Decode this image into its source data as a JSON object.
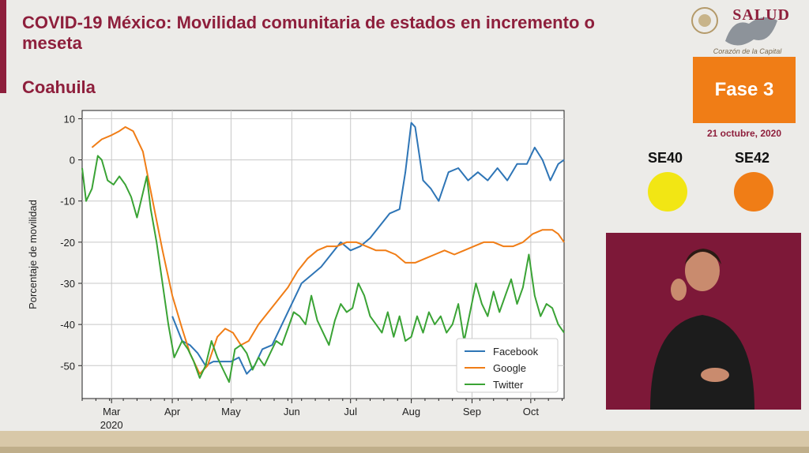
{
  "header": {
    "title": "COVID-19 México: Movilidad comunitaria de estados en incremento o meseta",
    "state": "Coahuila"
  },
  "logo": {
    "agency": "SALUD",
    "tagline": "Corazón de la Capital"
  },
  "phase": {
    "label": "Fase 3",
    "color": "#f07d16",
    "date": "21 octubre, 2020"
  },
  "weeks": [
    {
      "label": "SE40",
      "color": "#f2e614"
    },
    {
      "label": "SE42",
      "color": "#f07d16"
    }
  ],
  "chart_data": {
    "type": "line",
    "ylabel": "Porcentaje de movilidad",
    "xlabel": "",
    "ylim": [
      -58,
      12
    ],
    "yticks": [
      10,
      0,
      -10,
      -20,
      -30,
      -40,
      -50
    ],
    "xlim": [
      "2020-02-15",
      "2020-10-18"
    ],
    "xticks": [
      {
        "label": "Mar",
        "sublabel": "2020",
        "date": "2020-03-01"
      },
      {
        "label": "Apr",
        "date": "2020-04-01"
      },
      {
        "label": "May",
        "date": "2020-05-01"
      },
      {
        "label": "Jun",
        "date": "2020-06-01"
      },
      {
        "label": "Jul",
        "date": "2020-07-01"
      },
      {
        "label": "Aug",
        "date": "2020-08-01"
      },
      {
        "label": "Sep",
        "date": "2020-09-01"
      },
      {
        "label": "Oct",
        "date": "2020-10-01"
      }
    ],
    "grid": true,
    "legend": "bottom-right",
    "series": [
      {
        "name": "Facebook",
        "color": "#2e75b6",
        "points": [
          [
            "2020-04-01",
            -38
          ],
          [
            "2020-04-06",
            -44
          ],
          [
            "2020-04-10",
            -45
          ],
          [
            "2020-04-14",
            -47
          ],
          [
            "2020-04-18",
            -50
          ],
          [
            "2020-04-22",
            -49
          ],
          [
            "2020-04-26",
            -49
          ],
          [
            "2020-05-01",
            -49
          ],
          [
            "2020-05-05",
            -48
          ],
          [
            "2020-05-09",
            -52
          ],
          [
            "2020-05-13",
            -50
          ],
          [
            "2020-05-17",
            -46
          ],
          [
            "2020-05-22",
            -45
          ],
          [
            "2020-05-27",
            -40
          ],
          [
            "2020-06-01",
            -35
          ],
          [
            "2020-06-06",
            -30
          ],
          [
            "2020-06-11",
            -28
          ],
          [
            "2020-06-16",
            -26
          ],
          [
            "2020-06-21",
            -23
          ],
          [
            "2020-06-26",
            -20
          ],
          [
            "2020-07-01",
            -22
          ],
          [
            "2020-07-06",
            -21
          ],
          [
            "2020-07-11",
            -19
          ],
          [
            "2020-07-16",
            -16
          ],
          [
            "2020-07-21",
            -13
          ],
          [
            "2020-07-26",
            -12
          ],
          [
            "2020-07-29",
            -3
          ],
          [
            "2020-08-01",
            9
          ],
          [
            "2020-08-03",
            8
          ],
          [
            "2020-08-07",
            -5
          ],
          [
            "2020-08-11",
            -7
          ],
          [
            "2020-08-15",
            -10
          ],
          [
            "2020-08-20",
            -3
          ],
          [
            "2020-08-25",
            -2
          ],
          [
            "2020-08-30",
            -5
          ],
          [
            "2020-09-04",
            -3
          ],
          [
            "2020-09-09",
            -5
          ],
          [
            "2020-09-14",
            -2
          ],
          [
            "2020-09-19",
            -5
          ],
          [
            "2020-09-24",
            -1
          ],
          [
            "2020-09-29",
            -1
          ],
          [
            "2020-10-03",
            3
          ],
          [
            "2020-10-07",
            0
          ],
          [
            "2020-10-11",
            -5
          ],
          [
            "2020-10-15",
            -1
          ],
          [
            "2020-10-18",
            0
          ]
        ]
      },
      {
        "name": "Google",
        "color": "#f07d16",
        "points": [
          [
            "2020-02-20",
            3
          ],
          [
            "2020-02-25",
            5
          ],
          [
            "2020-03-01",
            6
          ],
          [
            "2020-03-05",
            7
          ],
          [
            "2020-03-08",
            8
          ],
          [
            "2020-03-12",
            7
          ],
          [
            "2020-03-17",
            2
          ],
          [
            "2020-03-22",
            -10
          ],
          [
            "2020-03-27",
            -22
          ],
          [
            "2020-04-01",
            -33
          ],
          [
            "2020-04-06",
            -41
          ],
          [
            "2020-04-10",
            -47
          ],
          [
            "2020-04-15",
            -52
          ],
          [
            "2020-04-19",
            -50
          ],
          [
            "2020-04-24",
            -43
          ],
          [
            "2020-04-28",
            -41
          ],
          [
            "2020-05-02",
            -42
          ],
          [
            "2020-05-06",
            -45
          ],
          [
            "2020-05-10",
            -44
          ],
          [
            "2020-05-15",
            -40
          ],
          [
            "2020-05-20",
            -37
          ],
          [
            "2020-05-25",
            -34
          ],
          [
            "2020-05-30",
            -31
          ],
          [
            "2020-06-04",
            -27
          ],
          [
            "2020-06-09",
            -24
          ],
          [
            "2020-06-14",
            -22
          ],
          [
            "2020-06-19",
            -21
          ],
          [
            "2020-06-24",
            -21
          ],
          [
            "2020-06-29",
            -20
          ],
          [
            "2020-07-04",
            -20
          ],
          [
            "2020-07-09",
            -21
          ],
          [
            "2020-07-14",
            -22
          ],
          [
            "2020-07-19",
            -22
          ],
          [
            "2020-07-24",
            -23
          ],
          [
            "2020-07-29",
            -25
          ],
          [
            "2020-08-03",
            -25
          ],
          [
            "2020-08-08",
            -24
          ],
          [
            "2020-08-13",
            -23
          ],
          [
            "2020-08-18",
            -22
          ],
          [
            "2020-08-23",
            -23
          ],
          [
            "2020-08-28",
            -22
          ],
          [
            "2020-09-02",
            -21
          ],
          [
            "2020-09-07",
            -20
          ],
          [
            "2020-09-12",
            -20
          ],
          [
            "2020-09-17",
            -21
          ],
          [
            "2020-09-22",
            -21
          ],
          [
            "2020-09-27",
            -20
          ],
          [
            "2020-10-02",
            -18
          ],
          [
            "2020-10-07",
            -17
          ],
          [
            "2020-10-12",
            -17
          ],
          [
            "2020-10-15",
            -18
          ],
          [
            "2020-10-18",
            -20
          ]
        ]
      },
      {
        "name": "Twitter",
        "color": "#3aa335",
        "points": [
          [
            "2020-02-15",
            -2
          ],
          [
            "2020-02-17",
            -10
          ],
          [
            "2020-02-20",
            -7
          ],
          [
            "2020-02-23",
            1
          ],
          [
            "2020-02-25",
            0
          ],
          [
            "2020-02-28",
            -5
          ],
          [
            "2020-03-02",
            -6
          ],
          [
            "2020-03-05",
            -4
          ],
          [
            "2020-03-08",
            -6
          ],
          [
            "2020-03-11",
            -9
          ],
          [
            "2020-03-14",
            -14
          ],
          [
            "2020-03-17",
            -8
          ],
          [
            "2020-03-19",
            -4
          ],
          [
            "2020-03-21",
            -12
          ],
          [
            "2020-03-24",
            -20
          ],
          [
            "2020-03-27",
            -30
          ],
          [
            "2020-03-30",
            -40
          ],
          [
            "2020-04-02",
            -48
          ],
          [
            "2020-04-06",
            -44
          ],
          [
            "2020-04-09",
            -46
          ],
          [
            "2020-04-12",
            -49
          ],
          [
            "2020-04-15",
            -53
          ],
          [
            "2020-04-18",
            -50
          ],
          [
            "2020-04-21",
            -44
          ],
          [
            "2020-04-24",
            -48
          ],
          [
            "2020-04-27",
            -51
          ],
          [
            "2020-04-30",
            -54
          ],
          [
            "2020-05-03",
            -46
          ],
          [
            "2020-05-06",
            -45
          ],
          [
            "2020-05-09",
            -47
          ],
          [
            "2020-05-12",
            -51
          ],
          [
            "2020-05-15",
            -48
          ],
          [
            "2020-05-18",
            -50
          ],
          [
            "2020-05-21",
            -47
          ],
          [
            "2020-05-24",
            -44
          ],
          [
            "2020-05-27",
            -45
          ],
          [
            "2020-05-30",
            -41
          ],
          [
            "2020-06-02",
            -37
          ],
          [
            "2020-06-05",
            -38
          ],
          [
            "2020-06-08",
            -40
          ],
          [
            "2020-06-11",
            -33
          ],
          [
            "2020-06-14",
            -39
          ],
          [
            "2020-06-17",
            -42
          ],
          [
            "2020-06-20",
            -45
          ],
          [
            "2020-06-23",
            -39
          ],
          [
            "2020-06-26",
            -35
          ],
          [
            "2020-06-29",
            -37
          ],
          [
            "2020-07-02",
            -36
          ],
          [
            "2020-07-05",
            -30
          ],
          [
            "2020-07-08",
            -33
          ],
          [
            "2020-07-11",
            -38
          ],
          [
            "2020-07-14",
            -40
          ],
          [
            "2020-07-17",
            -42
          ],
          [
            "2020-07-20",
            -37
          ],
          [
            "2020-07-23",
            -43
          ],
          [
            "2020-07-26",
            -38
          ],
          [
            "2020-07-29",
            -44
          ],
          [
            "2020-08-01",
            -43
          ],
          [
            "2020-08-04",
            -38
          ],
          [
            "2020-08-07",
            -42
          ],
          [
            "2020-08-10",
            -37
          ],
          [
            "2020-08-13",
            -40
          ],
          [
            "2020-08-16",
            -38
          ],
          [
            "2020-08-19",
            -42
          ],
          [
            "2020-08-22",
            -40
          ],
          [
            "2020-08-25",
            -35
          ],
          [
            "2020-08-28",
            -44
          ],
          [
            "2020-08-31",
            -37
          ],
          [
            "2020-09-03",
            -30
          ],
          [
            "2020-09-06",
            -35
          ],
          [
            "2020-09-09",
            -38
          ],
          [
            "2020-09-12",
            -32
          ],
          [
            "2020-09-15",
            -37
          ],
          [
            "2020-09-18",
            -33
          ],
          [
            "2020-09-21",
            -29
          ],
          [
            "2020-09-24",
            -35
          ],
          [
            "2020-09-27",
            -31
          ],
          [
            "2020-09-30",
            -23
          ],
          [
            "2020-10-03",
            -33
          ],
          [
            "2020-10-06",
            -38
          ],
          [
            "2020-10-09",
            -35
          ],
          [
            "2020-10-12",
            -36
          ],
          [
            "2020-10-15",
            -40
          ],
          [
            "2020-10-18",
            -42
          ]
        ]
      }
    ]
  }
}
